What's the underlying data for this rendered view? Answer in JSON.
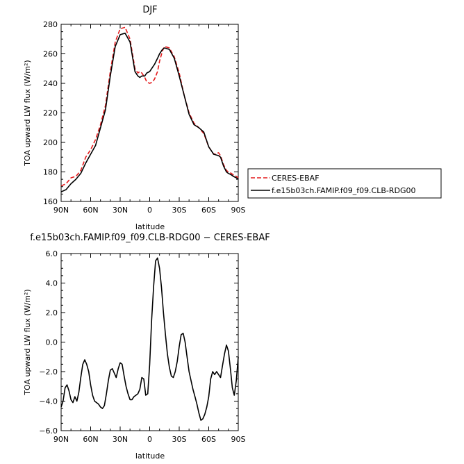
{
  "chart_data": [
    {
      "type": "line",
      "title": "DJF",
      "xlabel": "latitude",
      "ylabel": "TOA upward LW flux (W/m²)",
      "x_tick_labels": [
        "90N",
        "60N",
        "30N",
        "0",
        "30S",
        "60S",
        "90S"
      ],
      "y_tick_labels": [
        "160",
        "180",
        "200",
        "220",
        "240",
        "260",
        "280"
      ],
      "xlim": [
        90,
        -90
      ],
      "ylim": [
        160,
        280
      ],
      "legend_placement": "right",
      "x": [
        90,
        85,
        80,
        75,
        70,
        65,
        60,
        55,
        50,
        45,
        40,
        35,
        30,
        25,
        20,
        15,
        12,
        10,
        8,
        5,
        3,
        0,
        -3,
        -5,
        -8,
        -10,
        -13,
        -15,
        -20,
        -25,
        -30,
        -35,
        -40,
        -45,
        -50,
        -55,
        -60,
        -65,
        -70,
        -72,
        -75,
        -78,
        -80,
        -83,
        -85,
        -88,
        -90
      ],
      "series": [
        {
          "name": "CERES-EBAF",
          "color": "#e41a1c",
          "dash": "dashed",
          "values": [
            170.5,
            172,
            176,
            177,
            181,
            190,
            195,
            202,
            212,
            225,
            248,
            268,
            277,
            278,
            270,
            250,
            247,
            248,
            247,
            244,
            241,
            240,
            241,
            243,
            248,
            255,
            262,
            265,
            264,
            258,
            247,
            232,
            220,
            213,
            210,
            206,
            197,
            192,
            193,
            191,
            185,
            181,
            180,
            179,
            178,
            177,
            176
          ]
        },
        {
          "name": "f.e15b03ch.FAMIP.f09_f09.CLB-RDG00",
          "color": "#000000",
          "dash": "solid",
          "values": [
            166.5,
            168,
            172,
            175,
            179,
            186,
            192,
            198,
            210,
            222,
            245,
            265,
            273,
            274,
            268,
            248,
            245,
            244,
            245,
            245,
            247,
            248,
            251,
            253,
            257,
            260,
            263,
            264,
            263,
            257,
            245,
            232,
            219,
            212,
            210,
            207,
            197,
            192,
            191,
            190,
            184,
            180,
            179,
            178,
            177,
            176,
            175
          ]
        }
      ]
    },
    {
      "type": "line",
      "title": "f.e15b03ch.FAMIP.f09_f09.CLB-RDG00 − CERES-EBAF",
      "xlabel": "latitude",
      "ylabel": "TOA upward LW flux (W/m²)",
      "x_tick_labels": [
        "90N",
        "60N",
        "30N",
        "0",
        "30S",
        "60S",
        "90S"
      ],
      "y_tick_labels": [
        "−6.0",
        "−4.0",
        "−2.0",
        "0.0",
        "2.0",
        "4.0",
        "6.0"
      ],
      "xlim": [
        90,
        -90
      ],
      "ylim": [
        -6,
        6
      ],
      "x": [
        90,
        88,
        86,
        84,
        82,
        80,
        78,
        76,
        74,
        72,
        70,
        68,
        66,
        64,
        62,
        60,
        58,
        56,
        54,
        52,
        50,
        48,
        46,
        44,
        42,
        40,
        38,
        36,
        34,
        32,
        30,
        28,
        26,
        24,
        22,
        20,
        18,
        16,
        14,
        12,
        10,
        8,
        6,
        4,
        2,
        0,
        -2,
        -4,
        -6,
        -8,
        -10,
        -12,
        -14,
        -16,
        -18,
        -20,
        -22,
        -24,
        -26,
        -28,
        -30,
        -32,
        -34,
        -36,
        -38,
        -40,
        -42,
        -44,
        -46,
        -48,
        -50,
        -52,
        -54,
        -56,
        -58,
        -60,
        -62,
        -64,
        -66,
        -68,
        -70,
        -72,
        -74,
        -76,
        -78,
        -80,
        -82,
        -84,
        -86,
        -88,
        -90
      ],
      "series": [
        {
          "name": "",
          "color": "#000000",
          "dash": "solid",
          "values": [
            -4.4,
            -4.0,
            -3.1,
            -2.9,
            -3.3,
            -3.9,
            -4.1,
            -3.7,
            -4.0,
            -3.4,
            -2.4,
            -1.5,
            -1.2,
            -1.5,
            -2.0,
            -2.9,
            -3.6,
            -4.0,
            -4.1,
            -4.2,
            -4.4,
            -4.5,
            -4.3,
            -3.5,
            -2.6,
            -1.9,
            -1.8,
            -2.1,
            -2.4,
            -1.8,
            -1.4,
            -1.5,
            -2.3,
            -3.0,
            -3.5,
            -3.9,
            -3.9,
            -3.7,
            -3.6,
            -3.5,
            -3.2,
            -2.4,
            -2.5,
            -3.6,
            -3.5,
            -1.5,
            1.5,
            3.8,
            5.5,
            5.7,
            5.0,
            3.7,
            2.0,
            0.5,
            -0.8,
            -1.7,
            -2.3,
            -2.4,
            -2.0,
            -1.3,
            -0.3,
            0.5,
            0.6,
            0.0,
            -1.0,
            -2.0,
            -2.6,
            -3.2,
            -3.7,
            -4.2,
            -4.8,
            -5.3,
            -5.2,
            -4.9,
            -4.4,
            -3.7,
            -2.5,
            -2.0,
            -2.2,
            -2.0,
            -2.2,
            -2.4,
            -1.6,
            -0.8,
            -0.2,
            -0.6,
            -1.8,
            -3.1,
            -3.6,
            -2.6,
            -1.0
          ]
        }
      ]
    }
  ]
}
